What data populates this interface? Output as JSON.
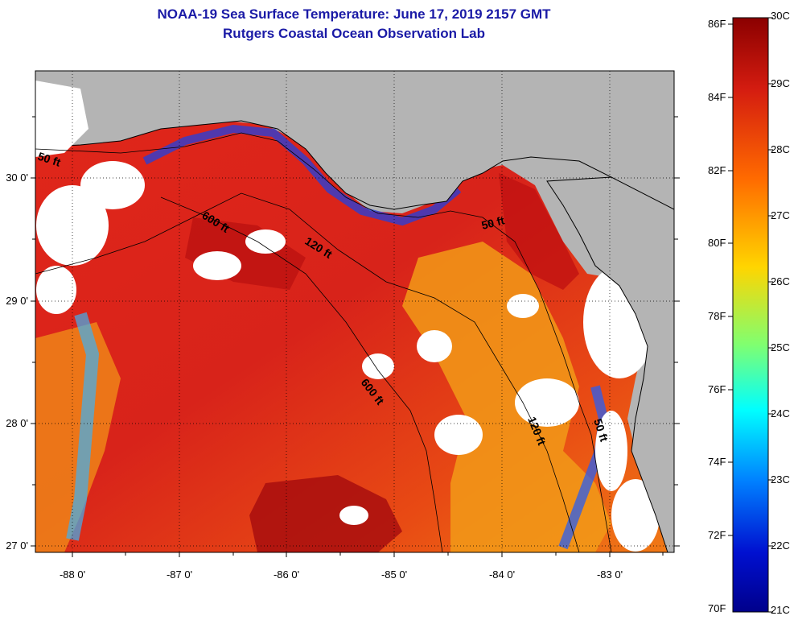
{
  "title": {
    "line1": "NOAA-19 Sea Surface Temperature:  June 17, 2019 2157 GMT",
    "line2": "Rutgers Coastal Ocean Observation Lab"
  },
  "map": {
    "lon_ticks": [
      "-88 0'",
      "-87 0'",
      "-86 0'",
      "-85 0'",
      "-84 0'",
      "-83 0'"
    ],
    "lat_ticks": [
      "30 0'",
      "29 0'",
      "28 0'",
      "27 0'"
    ],
    "isobath_labels": [
      "50 ft",
      "600 ft",
      "120 ft",
      "50 ft",
      "600 ft",
      "120 ft",
      "50 ft"
    ],
    "colors": {
      "land": "#b4b4b4",
      "cloud": "#ffffff"
    }
  },
  "colorbar": {
    "fahrenheit": [
      "86F",
      "84F",
      "82F",
      "80F",
      "78F",
      "76F",
      "74F",
      "72F",
      "70F"
    ],
    "celsius": [
      "30C",
      "29C",
      "28C",
      "27C",
      "26C",
      "25C",
      "24C",
      "23C",
      "22C",
      "21C"
    ],
    "colors": [
      "#8b0000",
      "#d41c10",
      "#ff6a00",
      "#ffd500",
      "#80ff70",
      "#00ffff",
      "#0080ff",
      "#0010d0",
      "#00008b"
    ]
  }
}
